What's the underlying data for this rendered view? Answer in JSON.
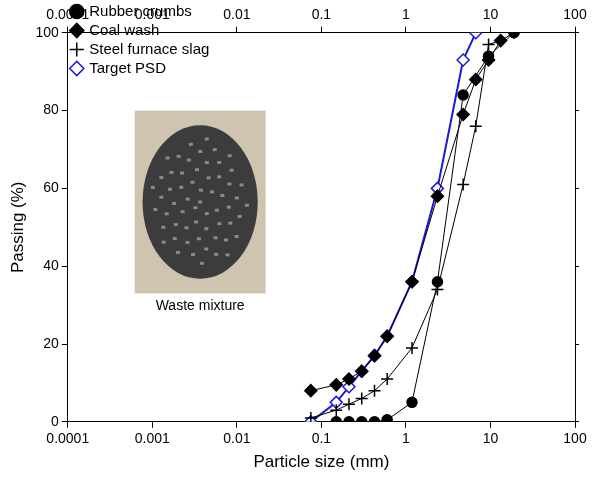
{
  "chart_data": {
    "type": "scatter",
    "x_label": "Particle size (mm)",
    "y_label": "Passing (%)",
    "log": "x",
    "grid": false,
    "legend": "upper left",
    "annotations": [
      "Waste mixture"
    ],
    "xlim": [
      0.0001,
      100
    ],
    "xticks": [
      0.0001,
      0.001,
      0.01,
      0.1,
      1,
      10,
      100
    ],
    "ylim": [
      0,
      100
    ],
    "yticks": [
      0,
      20,
      40,
      60,
      80,
      100
    ],
    "series": [
      {
        "name": "Rubber crumbs",
        "color": "#000000",
        "marker": "circle",
        "line_style": "solid",
        "x": [
          0.15,
          0.212,
          0.3,
          0.425,
          0.6,
          1.18,
          2.36,
          4.75,
          9.5,
          19
        ],
        "values": [
          0,
          0,
          0,
          0,
          0.5,
          5,
          36,
          84,
          94,
          100
        ]
      },
      {
        "name": "Coal wash",
        "color": "#000000",
        "marker": "diamond",
        "line_style": "solid",
        "x": [
          0.075,
          0.15,
          0.212,
          0.3,
          0.425,
          0.6,
          1.18,
          2.36,
          4.75,
          6.7,
          9.5,
          13.2
        ],
        "values": [
          8,
          9.5,
          11,
          13,
          17,
          22,
          36,
          58,
          79,
          88,
          93,
          98
        ]
      },
      {
        "name": "Steel furnace slag",
        "color": "#000000",
        "marker": "plus",
        "line_style": "solid",
        "x": [
          0.075,
          0.15,
          0.212,
          0.3,
          0.425,
          0.6,
          1.18,
          2.36,
          4.75,
          6.7,
          9.5,
          13.2,
          19
        ],
        "values": [
          1,
          3,
          4.5,
          6,
          8,
          11,
          19,
          34,
          61,
          76,
          97,
          98,
          100
        ]
      },
      {
        "name": "Target PSD",
        "color": "#1a1adb",
        "marker": "diamond_open",
        "line_style": "solid",
        "x": [
          0.075,
          0.15,
          0.212,
          0.3,
          0.425,
          0.6,
          1.18,
          2.36,
          4.75,
          6.7
        ],
        "values": [
          0,
          5,
          9,
          13,
          17,
          22,
          36,
          60,
          93,
          100
        ]
      }
    ]
  }
}
